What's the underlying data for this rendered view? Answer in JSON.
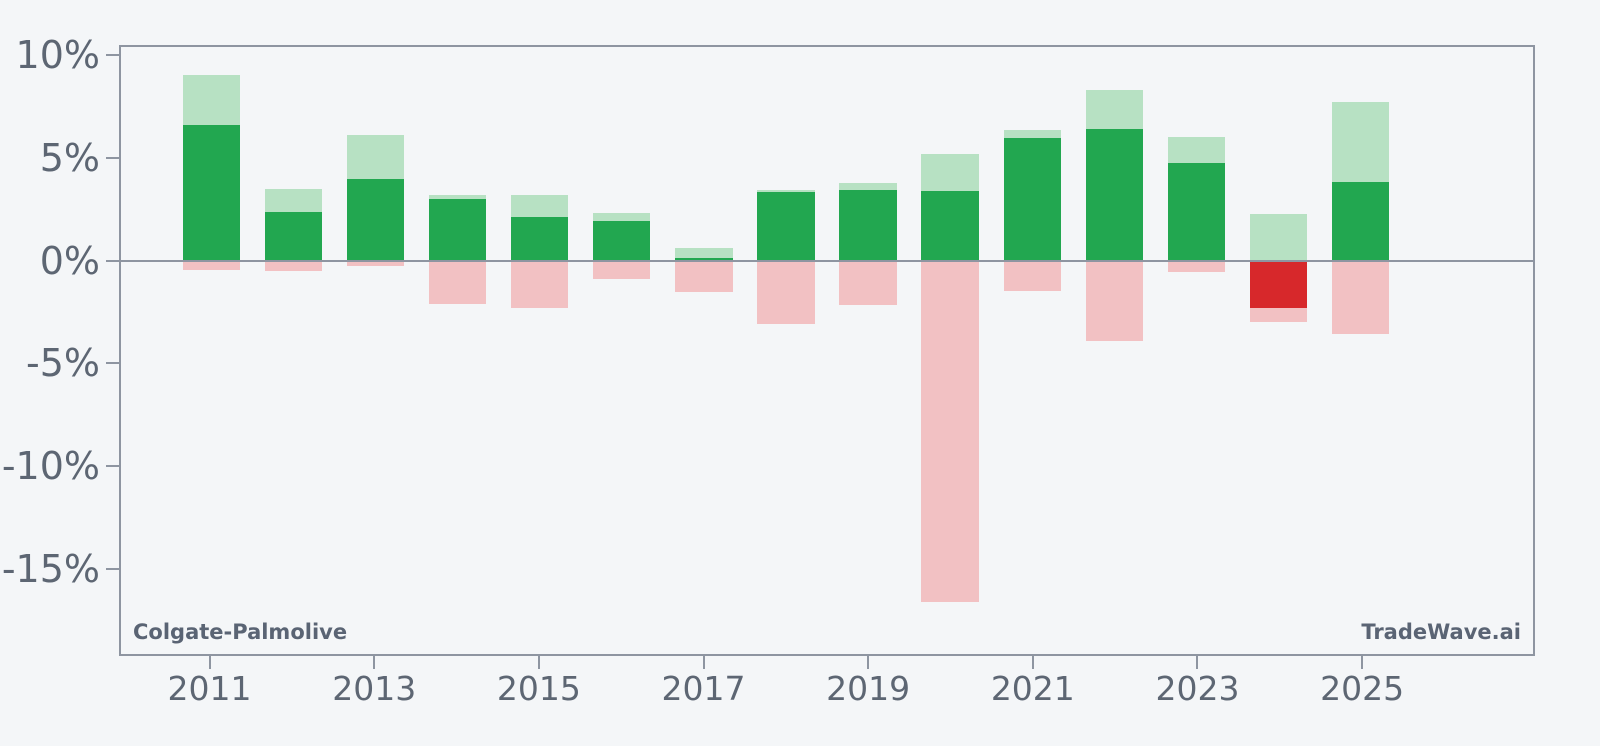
{
  "branding": {
    "company_label": "Colgate-Palmolive",
    "source_label": "TradeWave.ai"
  },
  "chart_data": {
    "type": "bar",
    "title": "",
    "xlabel": "",
    "ylabel": "",
    "categories": [
      2011,
      2012,
      2013,
      2014,
      2015,
      2016,
      2017,
      2018,
      2019,
      2020,
      2021,
      2022,
      2023,
      2024,
      2025
    ],
    "series": [
      {
        "name": "year-high-light-green",
        "color_key": "light_green",
        "values": [
          9.15,
          3.55,
          6.2,
          3.25,
          3.25,
          2.35,
          0.65,
          3.5,
          3.85,
          5.25,
          6.45,
          8.4,
          6.1,
          2.3,
          7.8
        ]
      },
      {
        "name": "year-low-pink",
        "color_key": "pink",
        "values": [
          -0.45,
          -0.5,
          -0.25,
          -2.1,
          -2.3,
          -0.85,
          -1.5,
          -3.1,
          -2.15,
          -16.7,
          -1.45,
          -3.9,
          -0.55,
          -3.0,
          -3.55
        ]
      },
      {
        "name": "close-gain-dark-green",
        "color_key": "dark_green",
        "values": [
          6.7,
          2.4,
          4.05,
          3.05,
          2.15,
          1.95,
          0.15,
          3.4,
          3.5,
          3.45,
          6.05,
          6.5,
          4.8,
          null,
          3.9
        ]
      },
      {
        "name": "close-loss-red",
        "color_key": "red",
        "values": [
          null,
          null,
          null,
          null,
          null,
          null,
          null,
          null,
          null,
          null,
          null,
          null,
          null,
          -2.3,
          null
        ]
      }
    ],
    "yticks": {
      "values": [
        10,
        5,
        0,
        -5,
        -10,
        -15
      ],
      "labels": [
        "10%",
        "5%",
        "0%",
        "-5%",
        "-10%",
        "-15%"
      ]
    },
    "xticks": {
      "values": [
        2011,
        2013,
        2015,
        2017,
        2019,
        2021,
        2023,
        2025
      ],
      "labels": [
        "2011",
        "2013",
        "2015",
        "2017",
        "2019",
        "2021",
        "2023",
        "2025"
      ]
    },
    "xlim": [
      2009.9,
      2027.1
    ],
    "ylim": [
      -19.25,
      10.5
    ],
    "bar_width_x": 0.7,
    "grid": false,
    "legend": "none",
    "colors": {
      "light_green": "#b7e1c3",
      "dark_green": "#22a750",
      "pink": "#f2c1c3",
      "red": "#d7282b",
      "axis": "#8e95a1",
      "tick_text": "#5d6673",
      "watermark_text": "#5a6474",
      "background": "#f4f6f8"
    }
  }
}
